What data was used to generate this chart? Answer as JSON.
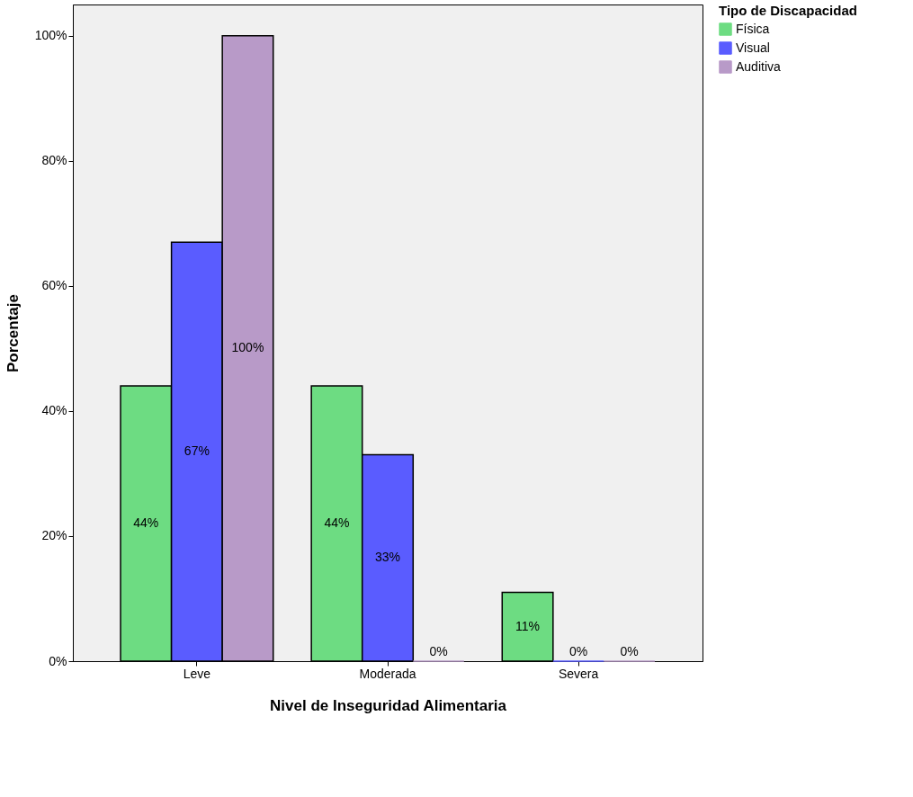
{
  "chart_data": {
    "type": "bar",
    "xlabel": "Nivel de Inseguridad Alimentaria",
    "ylabel": "Porcentaje",
    "legend_title": "Tipo de Discapacidad",
    "categories": [
      "Leve",
      "Moderada",
      "Severa"
    ],
    "series": [
      {
        "name": "Física",
        "color": "#6ddc82",
        "values": [
          44,
          44,
          11
        ],
        "value_labels": [
          "44%",
          "44%",
          "11%"
        ]
      },
      {
        "name": "Visual",
        "color": "#5a5cff",
        "values": [
          67,
          33,
          0
        ],
        "value_labels": [
          "67%",
          "33%",
          "0%"
        ]
      },
      {
        "name": "Auditiva",
        "color": "#b89ac8",
        "values": [
          100,
          0,
          0
        ],
        "value_labels": [
          "100%",
          "0%",
          "0%"
        ]
      }
    ],
    "ylim": [
      0,
      105
    ],
    "yticks": [
      {
        "value": 0,
        "label": "0%"
      },
      {
        "value": 20,
        "label": "20%"
      },
      {
        "value": 40,
        "label": "40%"
      },
      {
        "value": 60,
        "label": "60%"
      },
      {
        "value": 80,
        "label": "80%"
      },
      {
        "value": 100,
        "label": "100%"
      }
    ],
    "grid": false,
    "legend": "top right"
  }
}
